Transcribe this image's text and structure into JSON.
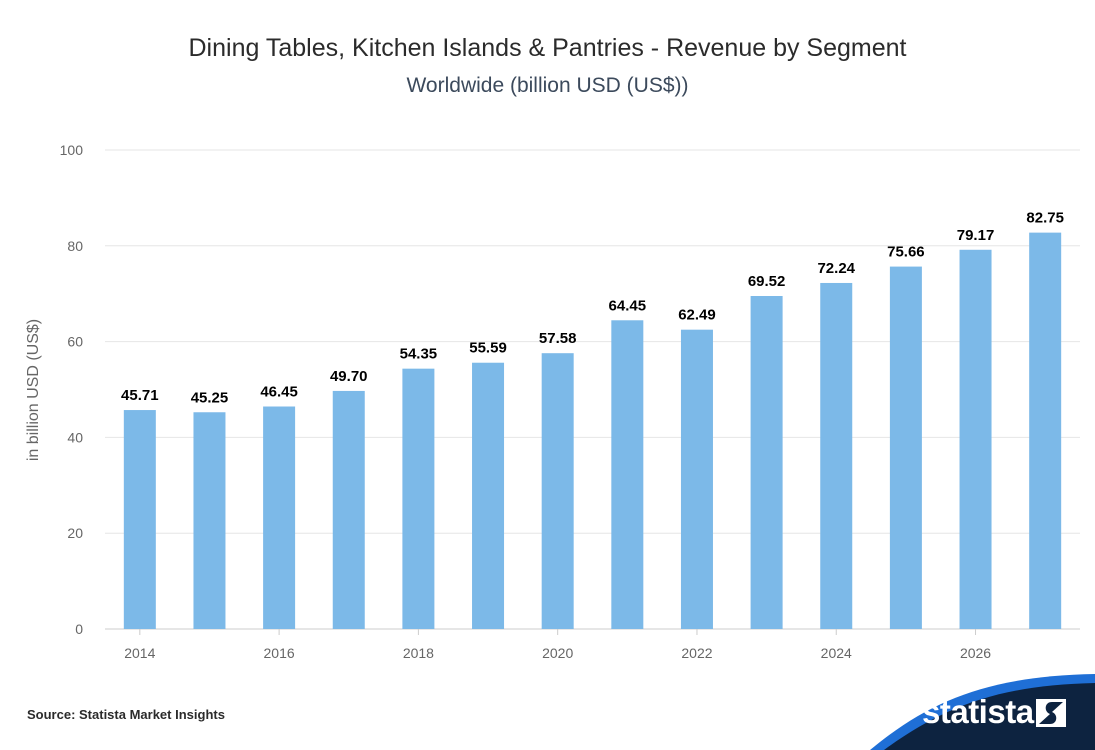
{
  "header": {
    "title": "Dining Tables, Kitchen Islands & Pantries - Revenue by Segment",
    "subtitle": "Worldwide (billion USD (US$))"
  },
  "footer": {
    "source": "Source: Statista Market Insights",
    "brand": "statista"
  },
  "colors": {
    "bar": "#7cb9e8",
    "grid": "#e6e6e6",
    "axis_text": "#666666",
    "label_text": "#000000",
    "brand_dark": "#0d2340",
    "brand_blue": "#1f6fd6"
  },
  "chart_data": {
    "type": "bar",
    "x": [
      2014,
      2015,
      2016,
      2017,
      2018,
      2019,
      2020,
      2021,
      2022,
      2023,
      2024,
      2025,
      2026,
      2027
    ],
    "values": [
      45.71,
      45.25,
      46.45,
      49.7,
      54.35,
      55.59,
      57.58,
      64.45,
      62.49,
      69.52,
      72.24,
      75.66,
      79.17,
      82.75
    ],
    "value_labels": [
      "45.71",
      "45.25",
      "46.45",
      "49.70",
      "54.35",
      "55.59",
      "57.58",
      "64.45",
      "62.49",
      "69.52",
      "72.24",
      "75.66",
      "79.17",
      "82.75"
    ],
    "x_tick_labels": [
      "2014",
      "",
      "2016",
      "",
      "2018",
      "",
      "2020",
      "",
      "2022",
      "",
      "2024",
      "",
      "2026",
      ""
    ],
    "ylabel": "in billion USD (US$)",
    "ylim": [
      0,
      100
    ],
    "yticks": [
      0,
      20,
      40,
      60,
      80,
      100
    ],
    "grid": true,
    "legend": "none"
  }
}
